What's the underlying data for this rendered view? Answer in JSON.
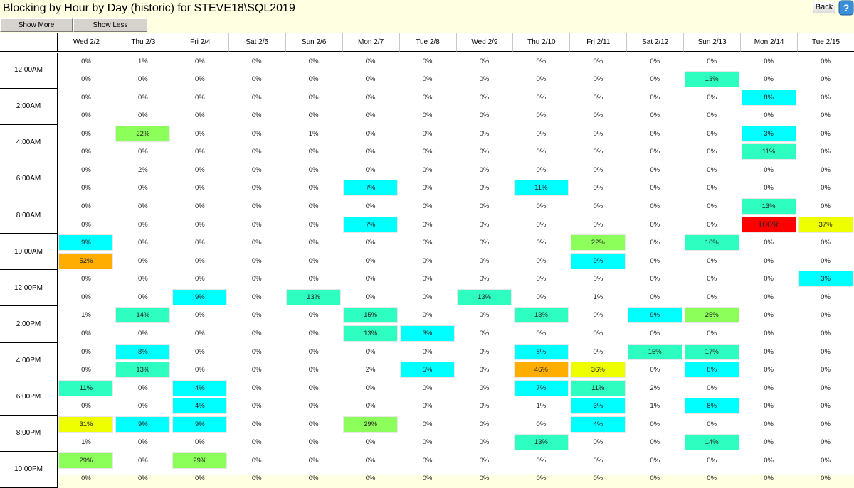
{
  "title": "Blocking by Hour by Day (historic) for STEVE18\\SQL2019",
  "back_label": "Back",
  "toolbar": {
    "show_more": "Show More",
    "show_less": "Show Less"
  },
  "colors": {
    "background": "#ffffe1",
    "cyan": "#00ffff",
    "teal": "#2effc0",
    "green": "#8cff5a",
    "yellow": "#eeff00",
    "orange": "#ffae00",
    "red": "#ff0000"
  },
  "days": [
    "Wed 2/2",
    "Thu 2/3",
    "Fri 2/4",
    "Sat 2/5",
    "Sun 2/6",
    "Mon 2/7",
    "Tue 2/8",
    "Wed 2/9",
    "Thu 2/10",
    "Fri 2/11",
    "Sat 2/12",
    "Sun 2/13",
    "Mon 2/14",
    "Tue 2/15"
  ],
  "time_labels": [
    "12:00AM",
    "2:00AM",
    "4:00AM",
    "6:00AM",
    "8:00AM",
    "10:00AM",
    "12:00PM",
    "2:00PM",
    "4:00PM",
    "6:00PM",
    "8:00PM",
    "10:00PM"
  ],
  "rows": [
    [
      "0%",
      "1%",
      "0%",
      "0%",
      "0%",
      "0%",
      "0%",
      "0%",
      "0%",
      "0%",
      "0%",
      "0%",
      "0%",
      "0%"
    ],
    [
      "0%",
      "0%",
      "0%",
      "0%",
      "0%",
      "0%",
      "0%",
      "0%",
      "0%",
      "0%",
      "0%",
      "13%",
      "0%",
      "0%"
    ],
    [
      "0%",
      "0%",
      "0%",
      "0%",
      "0%",
      "0%",
      "0%",
      "0%",
      "0%",
      "0%",
      "0%",
      "0%",
      "8%",
      "0%"
    ],
    [
      "0%",
      "0%",
      "0%",
      "0%",
      "0%",
      "0%",
      "0%",
      "0%",
      "0%",
      "0%",
      "0%",
      "0%",
      "0%",
      "0%"
    ],
    [
      "0%",
      "22%",
      "0%",
      "0%",
      "1%",
      "0%",
      "0%",
      "0%",
      "0%",
      "0%",
      "0%",
      "0%",
      "3%",
      "0%"
    ],
    [
      "0%",
      "0%",
      "0%",
      "0%",
      "0%",
      "0%",
      "0%",
      "0%",
      "0%",
      "0%",
      "0%",
      "0%",
      "11%",
      "0%"
    ],
    [
      "0%",
      "2%",
      "0%",
      "0%",
      "0%",
      "0%",
      "0%",
      "0%",
      "0%",
      "0%",
      "0%",
      "0%",
      "0%",
      "0%"
    ],
    [
      "0%",
      "0%",
      "0%",
      "0%",
      "0%",
      "7%",
      "0%",
      "0%",
      "11%",
      "0%",
      "0%",
      "0%",
      "0%",
      "0%"
    ],
    [
      "0%",
      "0%",
      "0%",
      "0%",
      "0%",
      "0%",
      "0%",
      "0%",
      "0%",
      "0%",
      "0%",
      "0%",
      "13%",
      "0%"
    ],
    [
      "0%",
      "0%",
      "0%",
      "0%",
      "0%",
      "7%",
      "0%",
      "0%",
      "0%",
      "0%",
      "0%",
      "0%",
      "100%",
      "37%"
    ],
    [
      "9%",
      "0%",
      "0%",
      "0%",
      "0%",
      "0%",
      "0%",
      "0%",
      "0%",
      "22%",
      "0%",
      "16%",
      "0%",
      "0%"
    ],
    [
      "52%",
      "0%",
      "0%",
      "0%",
      "0%",
      "0%",
      "0%",
      "0%",
      "0%",
      "9%",
      "0%",
      "0%",
      "0%",
      "0%"
    ],
    [
      "0%",
      "0%",
      "0%",
      "0%",
      "0%",
      "0%",
      "0%",
      "0%",
      "0%",
      "0%",
      "0%",
      "0%",
      "0%",
      "3%"
    ],
    [
      "0%",
      "0%",
      "9%",
      "0%",
      "13%",
      "0%",
      "0%",
      "13%",
      "0%",
      "1%",
      "0%",
      "0%",
      "0%",
      "0%"
    ],
    [
      "1%",
      "14%",
      "0%",
      "0%",
      "0%",
      "15%",
      "0%",
      "0%",
      "13%",
      "0%",
      "9%",
      "25%",
      "0%",
      "0%"
    ],
    [
      "0%",
      "0%",
      "0%",
      "0%",
      "0%",
      "13%",
      "3%",
      "0%",
      "0%",
      "0%",
      "0%",
      "0%",
      "0%",
      "0%"
    ],
    [
      "0%",
      "8%",
      "0%",
      "0%",
      "0%",
      "0%",
      "0%",
      "0%",
      "8%",
      "0%",
      "15%",
      "17%",
      "0%",
      "0%"
    ],
    [
      "0%",
      "13%",
      "0%",
      "0%",
      "0%",
      "2%",
      "5%",
      "0%",
      "46%",
      "36%",
      "0%",
      "8%",
      "0%",
      "0%"
    ],
    [
      "11%",
      "0%",
      "4%",
      "0%",
      "0%",
      "0%",
      "0%",
      "0%",
      "7%",
      "11%",
      "2%",
      "0%",
      "0%",
      "0%"
    ],
    [
      "0%",
      "0%",
      "4%",
      "0%",
      "0%",
      "0%",
      "0%",
      "0%",
      "1%",
      "3%",
      "1%",
      "8%",
      "0%",
      "0%"
    ],
    [
      "31%",
      "9%",
      "9%",
      "0%",
      "0%",
      "29%",
      "0%",
      "0%",
      "0%",
      "4%",
      "0%",
      "0%",
      "0%",
      "0%"
    ],
    [
      "1%",
      "0%",
      "0%",
      "0%",
      "0%",
      "0%",
      "0%",
      "0%",
      "13%",
      "0%",
      "0%",
      "14%",
      "0%",
      "0%"
    ],
    [
      "29%",
      "0%",
      "29%",
      "0%",
      "0%",
      "0%",
      "0%",
      "0%",
      "0%",
      "0%",
      "0%",
      "0%",
      "0%",
      "0%"
    ],
    [
      "0%",
      "0%",
      "0%",
      "0%",
      "0%",
      "0%",
      "0%",
      "0%",
      "0%",
      "0%",
      "0%",
      "0%",
      "0%",
      "0%"
    ]
  ],
  "highlights": [
    [
      1,
      11,
      "teal"
    ],
    [
      2,
      12,
      "cyan"
    ],
    [
      4,
      1,
      "green"
    ],
    [
      4,
      12,
      "cyan"
    ],
    [
      5,
      12,
      "teal"
    ],
    [
      7,
      5,
      "cyan"
    ],
    [
      7,
      8,
      "cyan"
    ],
    [
      8,
      12,
      "teal"
    ],
    [
      9,
      5,
      "cyan"
    ],
    [
      9,
      12,
      "red"
    ],
    [
      9,
      13,
      "yellow"
    ],
    [
      10,
      0,
      "cyan"
    ],
    [
      10,
      9,
      "green"
    ],
    [
      10,
      11,
      "teal"
    ],
    [
      11,
      0,
      "orange"
    ],
    [
      11,
      9,
      "cyan"
    ],
    [
      12,
      13,
      "cyan"
    ],
    [
      13,
      2,
      "cyan"
    ],
    [
      13,
      4,
      "teal"
    ],
    [
      13,
      7,
      "teal"
    ],
    [
      14,
      1,
      "teal"
    ],
    [
      14,
      5,
      "teal"
    ],
    [
      14,
      8,
      "teal"
    ],
    [
      14,
      10,
      "cyan"
    ],
    [
      14,
      11,
      "green"
    ],
    [
      15,
      5,
      "teal"
    ],
    [
      15,
      6,
      "cyan"
    ],
    [
      16,
      1,
      "cyan"
    ],
    [
      16,
      8,
      "cyan"
    ],
    [
      16,
      10,
      "teal"
    ],
    [
      16,
      11,
      "teal"
    ],
    [
      17,
      1,
      "teal"
    ],
    [
      17,
      6,
      "cyan"
    ],
    [
      17,
      8,
      "orange"
    ],
    [
      17,
      9,
      "yellow"
    ],
    [
      17,
      11,
      "cyan"
    ],
    [
      18,
      0,
      "teal"
    ],
    [
      18,
      2,
      "cyan"
    ],
    [
      18,
      8,
      "cyan"
    ],
    [
      18,
      9,
      "teal"
    ],
    [
      19,
      2,
      "cyan"
    ],
    [
      19,
      9,
      "cyan"
    ],
    [
      19,
      11,
      "cyan"
    ],
    [
      20,
      0,
      "yellow"
    ],
    [
      20,
      1,
      "cyan"
    ],
    [
      20,
      2,
      "cyan"
    ],
    [
      20,
      5,
      "green"
    ],
    [
      20,
      9,
      "cyan"
    ],
    [
      21,
      8,
      "teal"
    ],
    [
      21,
      11,
      "teal"
    ],
    [
      22,
      0,
      "green"
    ],
    [
      22,
      2,
      "green"
    ]
  ]
}
